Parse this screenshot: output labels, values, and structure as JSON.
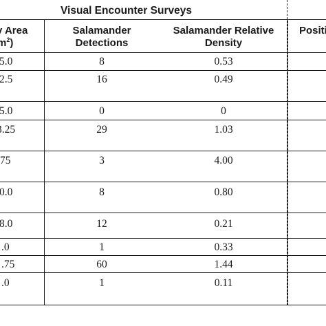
{
  "table": {
    "group_header": "Visual Encounter Surveys",
    "columns": {
      "area_line1": "y Area",
      "area_line2_pre": "m",
      "area_line2_sup": "2",
      "area_line2_post": ")",
      "detections_line1": "Salamander",
      "detections_line2": "Detections",
      "density_line1": "Salamander Relative",
      "density_line2": "Density",
      "next_partial": "Positi"
    },
    "rows": [
      {
        "area": "5.0",
        "detections": "8",
        "density": "0.53"
      },
      {
        "area": "2.5",
        "detections": "16",
        "density": "0.49"
      },
      {
        "area": "5.0",
        "detections": "0",
        "density": "0"
      },
      {
        "area": "3.25",
        "detections": "29",
        "density": "1.03"
      },
      {
        "area": "75",
        "detections": "3",
        "density": "4.00"
      },
      {
        "area": "0.0",
        "detections": "8",
        "density": "0.80"
      },
      {
        "area": "8.0",
        "detections": "12",
        "density": "0.21"
      },
      {
        "area": ".0",
        "detections": "1",
        "density": "0.33"
      },
      {
        "area": ".75",
        "detections": "60",
        "density": "1.44"
      },
      {
        "area": ".0",
        "detections": "1",
        "density": "0.11"
      }
    ]
  }
}
